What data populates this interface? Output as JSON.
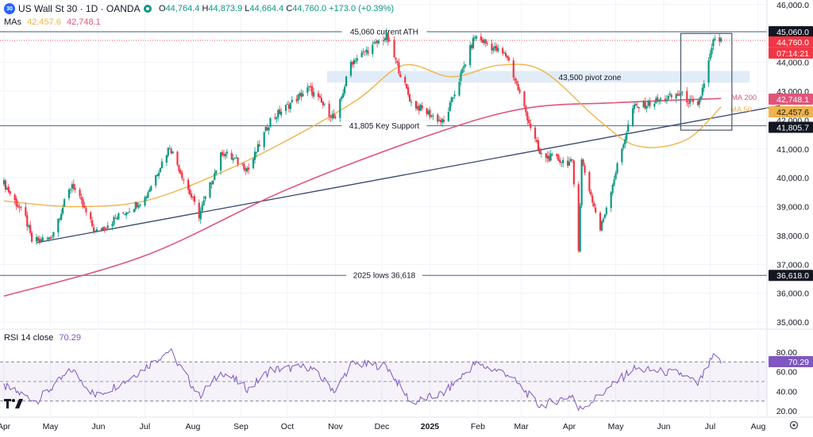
{
  "header": {
    "symbol_badge": "30",
    "title": "US Wall St 30 · 1D · OANDA",
    "open_label": "O",
    "open": "44,764.4",
    "high_label": "H",
    "high": "44,873.9",
    "low_label": "L",
    "low": "44,664.4",
    "close_label": "C",
    "close": "44,760.0",
    "change": "+173.0 (+0.39%)",
    "mas_label": "MAs",
    "ma50_value": "42,457.6",
    "ma200_value": "42,748.1",
    "rsi_label": "RSI 14 close",
    "rsi_value": "70.29"
  },
  "colors": {
    "up": "#089981",
    "down": "#f23645",
    "ma200": "#e0557a",
    "ma50": "#f0b44a",
    "rsi": "#7e57c2",
    "zone": "#dbe9f6",
    "trend": "#364570",
    "level": "#6b7a99"
  },
  "chart_data": [
    {
      "type": "candlestick",
      "title": "US Wall St 30 · 1D · OANDA",
      "ylim": [
        35000,
        46000
      ],
      "y_ticks": [
        "46,000.0",
        "45,000.0",
        "44,000.0",
        "43,000.0",
        "42,000.0",
        "41,000.0",
        "40,000.0",
        "39,000.0",
        "38,000.0",
        "37,000.0",
        "36,000.0",
        "35,000.0"
      ],
      "x_labels": [
        "Apr",
        "May",
        "Jun",
        "Jul",
        "Aug",
        "Sep",
        "Oct",
        "Nov",
        "Dec",
        "2025",
        "Feb",
        "Mar",
        "Apr",
        "May",
        "Jun",
        "Jul",
        "Aug"
      ],
      "key_closes": [
        [
          "2024-04-01",
          39800
        ],
        [
          "2024-04-15",
          38600
        ],
        [
          "2024-04-19",
          37800
        ],
        [
          "2024-05-01",
          37900
        ],
        [
          "2024-05-15",
          39800
        ],
        [
          "2024-05-30",
          38100
        ],
        [
          "2024-06-15",
          38700
        ],
        [
          "2024-07-01",
          39300
        ],
        [
          "2024-07-17",
          41100
        ],
        [
          "2024-08-05",
          38700
        ],
        [
          "2024-08-20",
          40900
        ],
        [
          "2024-09-06",
          40300
        ],
        [
          "2024-09-20",
          42000
        ],
        [
          "2024-10-15",
          43100
        ],
        [
          "2024-11-01",
          42000
        ],
        [
          "2024-11-11",
          44000
        ],
        [
          "2024-12-04",
          44900
        ],
        [
          "2024-12-20",
          42600
        ],
        [
          "2025-01-10",
          41900
        ],
        [
          "2025-01-30",
          44900
        ],
        [
          "2025-02-20",
          44200
        ],
        [
          "2025-03-13",
          40800
        ],
        [
          "2025-04-03",
          40500
        ],
        [
          "2025-04-07",
          37600
        ],
        [
          "2025-04-09",
          40600
        ],
        [
          "2025-04-21",
          38200
        ],
        [
          "2025-05-12",
          42400
        ],
        [
          "2025-06-12",
          42900
        ],
        [
          "2025-06-23",
          42400
        ],
        [
          "2025-07-03",
          44700
        ],
        [
          "2025-07-08",
          44760
        ]
      ],
      "last_price": "44,760.0",
      "countdown": "07:14:21",
      "series": [
        {
          "name": "MA 200",
          "value": "42,748.1",
          "key_points": [
            [
              "2024-04-01",
              35900
            ],
            [
              "2024-07-01",
              37300
            ],
            [
              "2024-10-01",
              39600
            ],
            [
              "2025-01-02",
              41500
            ],
            [
              "2025-03-03",
              42400
            ],
            [
              "2025-05-01",
              42600
            ],
            [
              "2025-07-08",
              42748
            ]
          ]
        },
        {
          "name": "MA 50",
          "value": "42,457.6",
          "key_points": [
            [
              "2024-04-01",
              39200
            ],
            [
              "2024-05-15",
              39000
            ],
            [
              "2024-07-01",
              39200
            ],
            [
              "2024-08-20",
              40200
            ],
            [
              "2024-10-01",
              41300
            ],
            [
              "2024-11-15",
              42700
            ],
            [
              "2024-12-15",
              43900
            ],
            [
              "2025-01-15",
              43500
            ],
            [
              "2025-02-15",
              43900
            ],
            [
              "2025-03-15",
              43700
            ],
            [
              "2025-04-20",
              42000
            ],
            [
              "2025-05-15",
              41100
            ],
            [
              "2025-06-15",
              41300
            ],
            [
              "2025-07-08",
              42457
            ]
          ]
        }
      ],
      "annotations": [
        {
          "text": "45,060 current ATH",
          "value": 45060,
          "badge": "45,060.0"
        },
        {
          "text": "43,500 pivot zone",
          "value_range": [
            43300,
            43700
          ]
        },
        {
          "text": "41,805 Key Support",
          "value": 41805,
          "badge": "41,805.7"
        },
        {
          "text": "2025 lows 36,618",
          "value": 36618,
          "badge": "36,618.0"
        },
        {
          "text": "MA 200"
        },
        {
          "text": "MA 50"
        }
      ],
      "trendline": [
        [
          "2024-04-22",
          37750
        ],
        [
          "2025-08-15",
          42500
        ]
      ],
      "highlight_box": {
        "from": "2025-06-12",
        "to": "2025-07-15",
        "value_range": [
          41650,
          45000
        ]
      }
    },
    {
      "type": "line",
      "title": "RSI 14 close",
      "value": "70.29",
      "ylim": [
        20,
        85
      ],
      "y_ticks": [
        "80.00",
        "60.00",
        "40.00",
        "20.00"
      ],
      "bands": [
        30,
        50,
        70
      ],
      "key_points": [
        [
          "2024-04-01",
          45
        ],
        [
          "2024-04-15",
          35
        ],
        [
          "2024-04-22",
          30
        ],
        [
          "2024-05-15",
          62
        ],
        [
          "2024-05-30",
          35
        ],
        [
          "2024-06-20",
          52
        ],
        [
          "2024-07-17",
          82
        ],
        [
          "2024-08-05",
          35
        ],
        [
          "2024-08-20",
          60
        ],
        [
          "2024-09-06",
          42
        ],
        [
          "2024-09-20",
          62
        ],
        [
          "2024-10-15",
          65
        ],
        [
          "2024-11-01",
          40
        ],
        [
          "2024-11-11",
          68
        ],
        [
          "2024-12-04",
          66
        ],
        [
          "2024-12-20",
          28
        ],
        [
          "2025-01-10",
          38
        ],
        [
          "2025-01-30",
          68
        ],
        [
          "2025-02-20",
          58
        ],
        [
          "2025-03-13",
          25
        ],
        [
          "2025-04-03",
          36
        ],
        [
          "2025-04-07",
          21
        ],
        [
          "2025-04-21",
          36
        ],
        [
          "2025-05-12",
          63
        ],
        [
          "2025-06-12",
          58
        ],
        [
          "2025-06-23",
          47
        ],
        [
          "2025-07-03",
          75
        ],
        [
          "2025-07-08",
          70.3
        ]
      ]
    }
  ]
}
